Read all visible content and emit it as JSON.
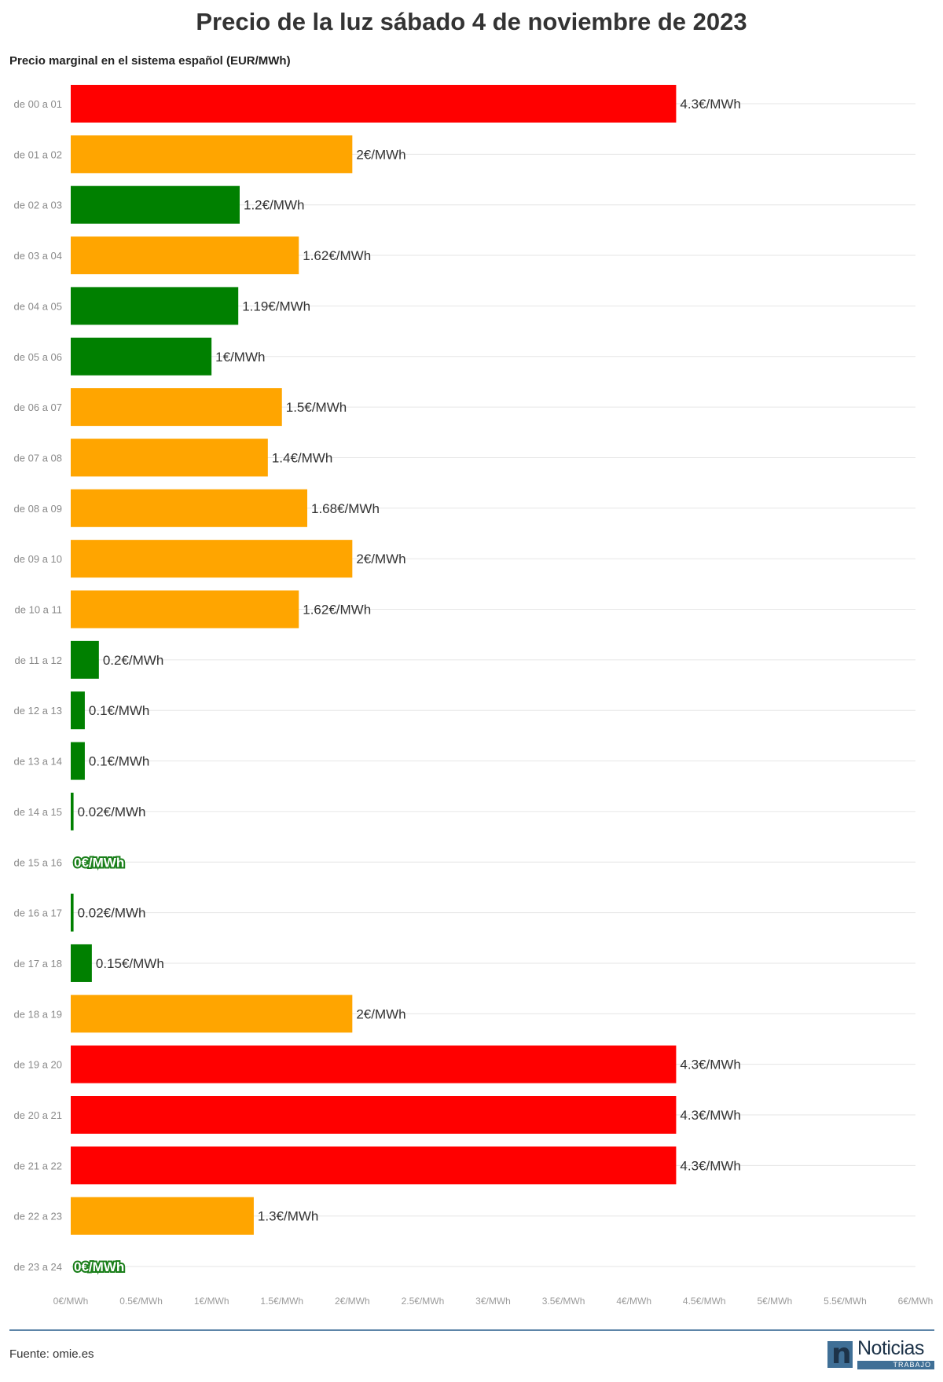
{
  "title": "Precio de la luz sábado 4 de noviembre de 2023",
  "subtitle": "Precio marginal en el sistema español (EUR/MWh)",
  "source": "Fuente: omie.es",
  "logo": {
    "word": "Noticias",
    "sub": "TRABAJO",
    "mark": "n"
  },
  "colors": {
    "high": "#ff0000",
    "mid": "#ffa500",
    "low": "#008000",
    "grid": "#e6e6e6",
    "rule": "#5d85a8"
  },
  "chart_data": {
    "type": "bar",
    "orientation": "horizontal",
    "categories": [
      "de 00 a 01",
      "de 01 a 02",
      "de 02 a 03",
      "de 03 a 04",
      "de 04 a 05",
      "de 05 a 06",
      "de 06 a 07",
      "de 07 a 08",
      "de 08 a 09",
      "de 09 a 10",
      "de 10 a 11",
      "de 11 a 12",
      "de 12 a 13",
      "de 13 a 14",
      "de 14 a 15",
      "de 15 a 16",
      "de 16 a 17",
      "de 17 a 18",
      "de 18 a 19",
      "de 19 a 20",
      "de 20 a 21",
      "de 21 a 22",
      "de 22 a 23",
      "de 23 a 24"
    ],
    "values": [
      4.3,
      2,
      1.2,
      1.62,
      1.19,
      1,
      1.5,
      1.4,
      1.68,
      2,
      1.62,
      0.2,
      0.1,
      0.1,
      0.02,
      0,
      0.02,
      0.15,
      2,
      4.3,
      4.3,
      4.3,
      1.3,
      0
    ],
    "labels": [
      "4.3€/MWh",
      "2€/MWh",
      "1.2€/MWh",
      "1.62€/MWh",
      "1.19€/MWh",
      "1€/MWh",
      "1.5€/MWh",
      "1.4€/MWh",
      "1.68€/MWh",
      "2€/MWh",
      "1.62€/MWh",
      "0.2€/MWh",
      "0.1€/MWh",
      "0.1€/MWh",
      "0.02€/MWh",
      "0€/MWh",
      "0.02€/MWh",
      "0.15€/MWh",
      "2€/MWh",
      "4.3€/MWh",
      "4.3€/MWh",
      "4.3€/MWh",
      "1.3€/MWh",
      "0€/MWh"
    ],
    "levels": [
      "high",
      "mid",
      "low",
      "mid",
      "low",
      "low",
      "mid",
      "mid",
      "mid",
      "mid",
      "mid",
      "low",
      "low",
      "low",
      "low",
      "low",
      "low",
      "low",
      "mid",
      "high",
      "high",
      "high",
      "mid",
      "low"
    ],
    "xlim": [
      0,
      6
    ],
    "xticks": [
      0,
      0.5,
      1,
      1.5,
      2,
      2.5,
      3,
      3.5,
      4,
      4.5,
      5,
      5.5,
      6
    ],
    "xtick_labels": [
      "0€/MWh",
      "0.5€/MWh",
      "1€/MWh",
      "1.5€/MWh",
      "2€/MWh",
      "2.5€/MWh",
      "3€/MWh",
      "3.5€/MWh",
      "4€/MWh",
      "4.5€/MWh",
      "5€/MWh",
      "5.5€/MWh",
      "6€/MWh"
    ],
    "grid": true
  }
}
